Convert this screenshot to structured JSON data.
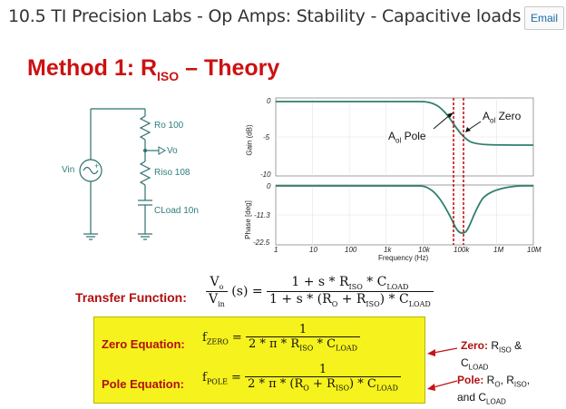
{
  "header": {
    "title": "10.5 TI Precision Labs - Op Amps: Stability - Capacitive loads",
    "email_label": "Email"
  },
  "slide": {
    "title_main": "Method 1: R",
    "title_sub": "ISO",
    "title_rest": " – Theory"
  },
  "circuit": {
    "ro": "Ro 100",
    "vo": "Vo",
    "vin": "Vin",
    "riso": "Riso 108",
    "cload": "CLoad 10n",
    "plus": "+"
  },
  "plot": {
    "gain_ylabel": "Gain (dB)",
    "phase_ylabel": "Phase [deg]",
    "xlabel": "Frequency (Hz)",
    "gain_ticks": [
      "0",
      "-5",
      "-10"
    ],
    "phase_ticks": [
      "0",
      "-11.3",
      "-22.5"
    ],
    "x_ticks": [
      "1",
      "10",
      "100",
      "1k",
      "10k",
      "100k",
      "1M",
      "10M"
    ],
    "pole_label_main": "A",
    "pole_label_sub": "ol",
    "pole_label_rest": " Pole",
    "zero_label_main": "A",
    "zero_label_sub": "ol",
    "zero_label_rest": " Zero",
    "accent": "#c41515",
    "curve_color": "#2e7d6e"
  },
  "transfer": {
    "label": "Transfer Function:",
    "lhs_num": "V",
    "lhs_num_sub": "o",
    "lhs_den": "V",
    "lhs_den_sub": "in",
    "lhs_arg": "(s) =",
    "numerator": "1 + s * R",
    "numerator_sub": "ISO",
    "numerator_mid": " * C",
    "numerator_sub2": "LOAD",
    "denominator": "1 + s * (R",
    "denominator_sub1": "O",
    "denominator_mid": " + R",
    "denominator_sub2": "ISO",
    "denominator_mid2": ") * C",
    "denominator_sub3": "LOAD"
  },
  "zero_eq": {
    "label": "Zero Equation:",
    "lhs": "f",
    "lhs_sub": "ZERO",
    "eq": " =",
    "num": "1",
    "den": "2 * π * R",
    "den_sub": "ISO",
    "den_mid": " * C",
    "den_sub2": "LOAD"
  },
  "pole_eq": {
    "label": "Pole Equation:",
    "lhs": "f",
    "lhs_sub": "POLE",
    "eq": " =",
    "num": "1",
    "den": "2 * π * (R",
    "den_sub1": "O",
    "den_mid": " + R",
    "den_sub2": "ISO",
    "den_mid2": ") * C",
    "den_sub3": "LOAD"
  },
  "notes": {
    "zero_head": "Zero:",
    "zero_t1": " R",
    "zero_s1": "ISO",
    "zero_t2": " &",
    "zero_t3": "C",
    "zero_s2": "LOAD",
    "pole_head": "Pole:",
    "pole_t1": " R",
    "pole_s1": "O",
    "pole_t2": ", R",
    "pole_s2": "ISO",
    "pole_t3": ",",
    "pole_t4": "and C",
    "pole_s3": "LOAD"
  }
}
